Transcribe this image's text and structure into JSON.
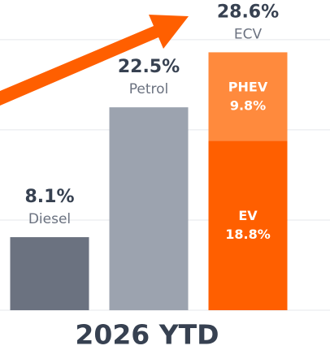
{
  "chart_data": {
    "type": "bar",
    "title": "2026 YTD",
    "ylim": [
      0,
      34.4
    ],
    "yticks": [
      0,
      10,
      20,
      30
    ],
    "grid": true,
    "bars": [
      {
        "category": "Diesel",
        "value": 8.1,
        "value_label": "8.1%",
        "color": "#6b7280"
      },
      {
        "category": "Petrol",
        "value": 22.5,
        "value_label": "22.5%",
        "color": "#9ca3af"
      },
      {
        "category": "ECV",
        "total": 28.6,
        "total_label": "28.6%",
        "segments": [
          {
            "name": "EV",
            "value": 18.8,
            "value_label": "18.8%",
            "color": "#ff5f00"
          },
          {
            "name": "PHEV",
            "value": 9.8,
            "value_label": "9.8%",
            "color": "#ff8a3d"
          }
        ]
      }
    ]
  }
}
